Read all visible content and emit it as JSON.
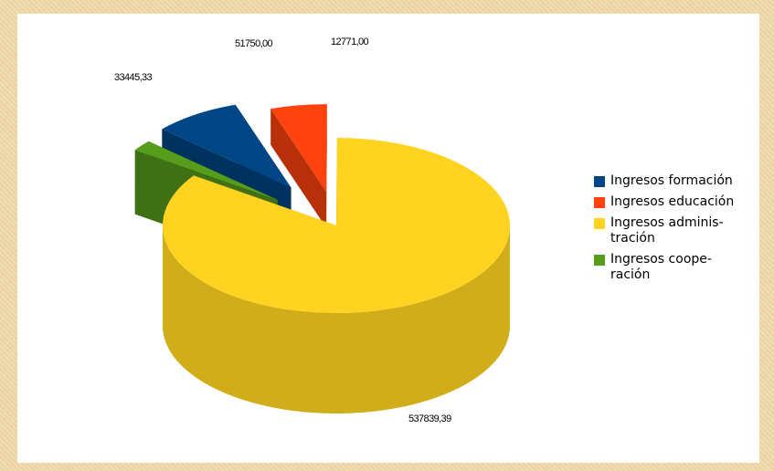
{
  "chart_data": {
    "type": "pie",
    "title": "",
    "slices": [
      {
        "label": "Ingresos formación",
        "value": 51750.0,
        "display": "51750,00",
        "color": "#004586"
      },
      {
        "label": "Ingresos educación",
        "value": 33445.33,
        "display": "33445,33",
        "color": "#ff420e"
      },
      {
        "label": "Ingresos adminis-tración",
        "value": 537839.39,
        "display": "537839,39",
        "color": "#ffd320"
      },
      {
        "label": "Ingresos coope-ración",
        "value": 12771.0,
        "display": "12771,00",
        "color": "#579d1c"
      }
    ],
    "legend": {
      "position": "right",
      "entries": [
        {
          "text": "Ingresos formación",
          "color": "#004586"
        },
        {
          "text": "Ingresos educación",
          "color": "#ff420e"
        },
        {
          "text": "Ingresos adminis-tración",
          "color": "#ffd320"
        },
        {
          "text": "Ingresos coope-ración",
          "color": "#579d1c"
        }
      ]
    }
  }
}
